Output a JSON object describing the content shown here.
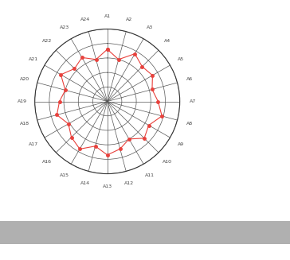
{
  "chart_data": {
    "type": "radar",
    "categories": [
      "A1",
      "A2",
      "A3",
      "A4",
      "A5",
      "A6",
      "A7",
      "A8",
      "A9",
      "A10",
      "A11",
      "A12",
      "A13",
      "A14",
      "A15",
      "A16",
      "A17",
      "A18",
      "A19",
      "A20",
      "A21",
      "A22",
      "A23",
      "A24"
    ],
    "values": [
      3.6,
      3.0,
      3.8,
      3.4,
      3.6,
      3.2,
      3.5,
      3.9,
      3.3,
      3.6,
      3.0,
      3.4,
      3.7,
      3.2,
      3.8,
      3.5,
      3.1,
      3.6,
      3.3,
      3.0,
      3.7,
      3.2,
      3.5,
      3.0
    ],
    "color": "#e8413c",
    "marker": "o",
    "line_style": "solid",
    "ylim": [
      0,
      5
    ],
    "yticks": [
      1,
      2,
      3,
      4,
      5
    ],
    "grid": true,
    "tick_labels": "x"
  }
}
